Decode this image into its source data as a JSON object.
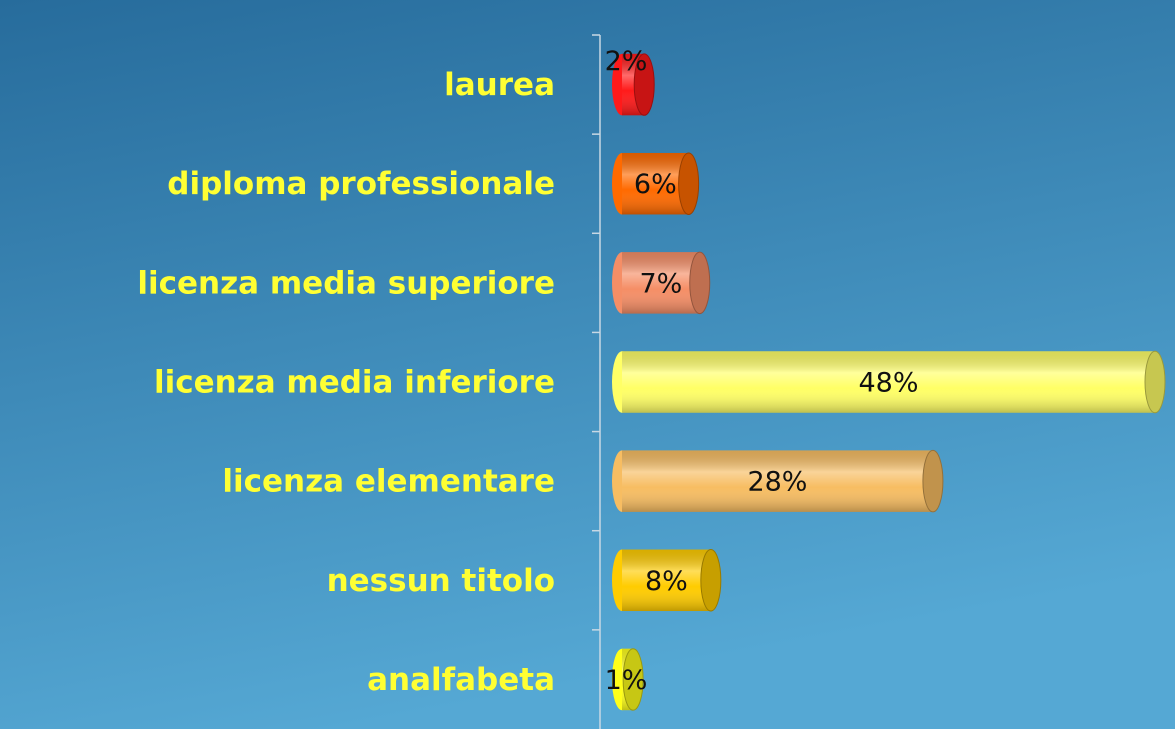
{
  "chart_data": {
    "type": "bar",
    "orientation": "horizontal",
    "categories": [
      "laurea",
      "diploma professionale",
      "licenza media superiore",
      "licenza media inferiore",
      "licenza elementare",
      "nessun titolo",
      "analfabeta"
    ],
    "values": [
      2,
      6,
      7,
      48,
      28,
      8,
      1
    ],
    "value_labels": [
      "2%",
      "6%",
      "7%",
      "48%",
      "28%",
      "8%",
      "1%"
    ],
    "colors": [
      "#ff1a1a",
      "#ff6a00",
      "#f58e66",
      "#ffff66",
      "#f7bd62",
      "#ffcc00",
      "#ffff1a"
    ]
  }
}
